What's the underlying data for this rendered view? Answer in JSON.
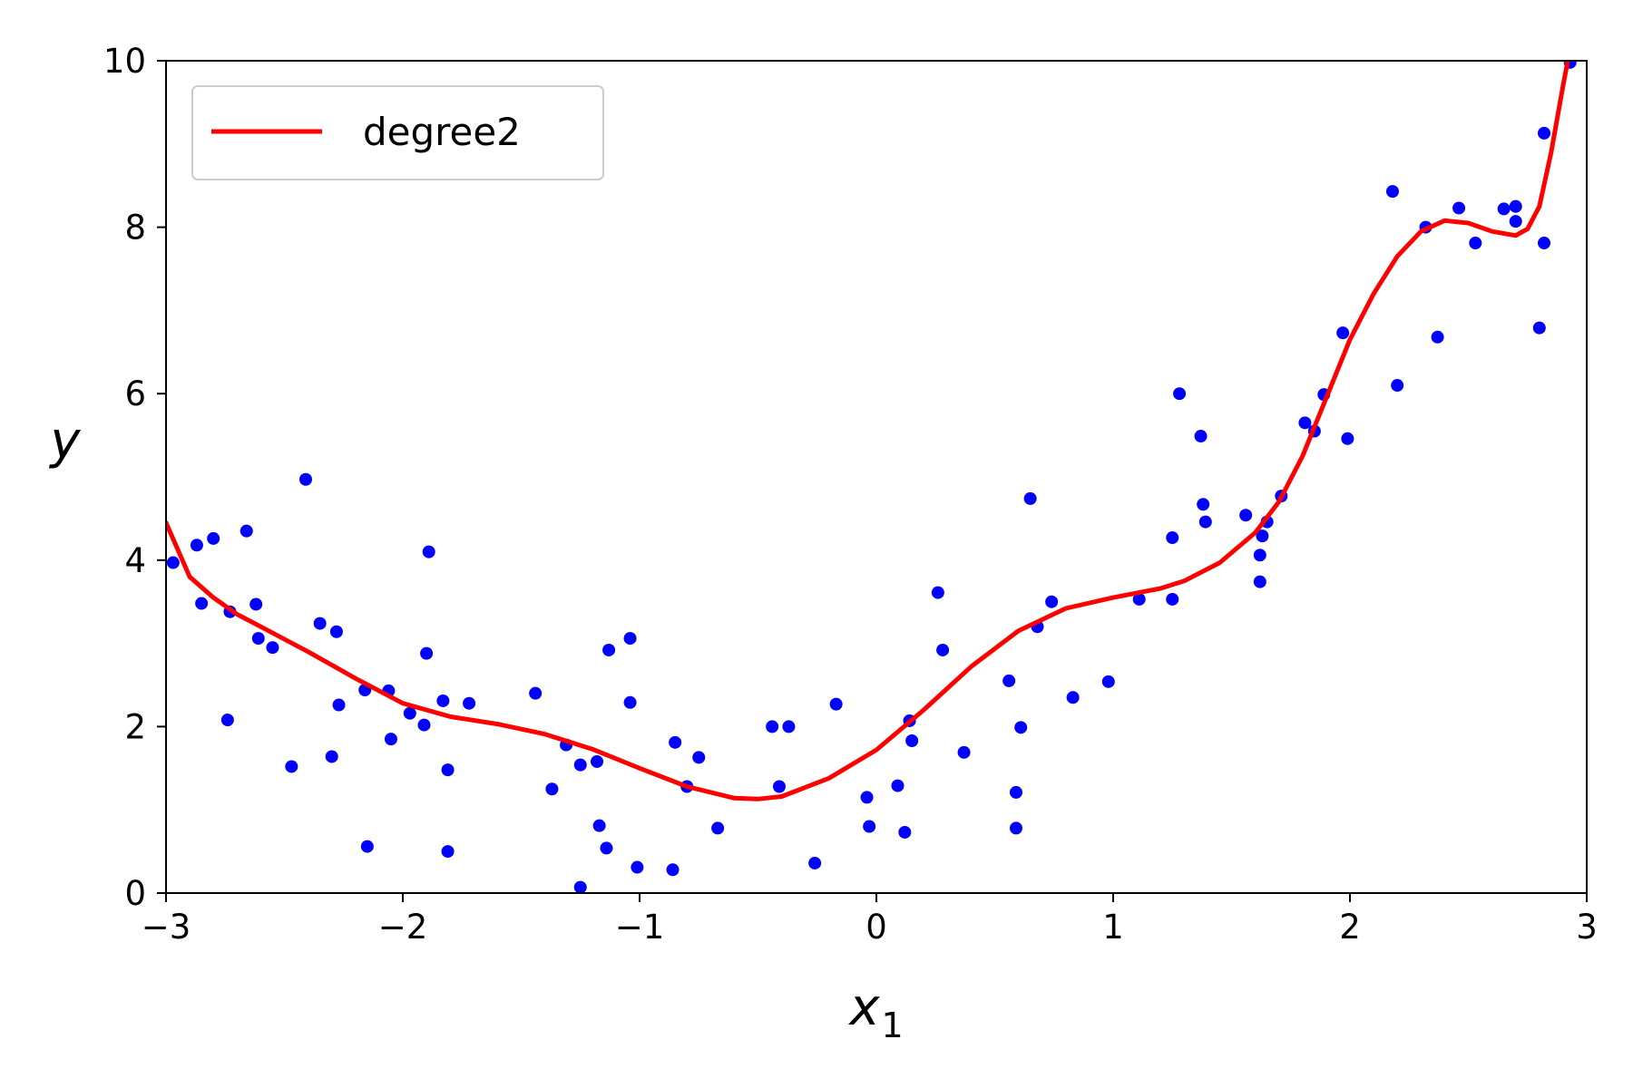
{
  "chart_data": {
    "type": "scatter",
    "title": "",
    "xlabel": "x",
    "xlabel_subscript": "1",
    "ylabel": "y",
    "xlim": [
      -3,
      3
    ],
    "ylim": [
      0,
      10
    ],
    "xticks": [
      -3,
      -2,
      -1,
      0,
      1,
      2,
      3
    ],
    "yticks": [
      0,
      2,
      4,
      6,
      8,
      10
    ],
    "xtick_labels": [
      "−3",
      "−2",
      "−1",
      "0",
      "1",
      "2",
      "3"
    ],
    "ytick_labels": [
      "0",
      "2",
      "4",
      "6",
      "8",
      "10"
    ],
    "grid": false,
    "legend_position": "top-left",
    "legend": [
      "degree2"
    ],
    "colors": {
      "points": "#0000ff",
      "curve": "#ff0000"
    },
    "series": [
      {
        "type": "scatter",
        "color": "#0000ff",
        "points": [
          [
            -2.97,
            3.97
          ],
          [
            -2.87,
            4.18
          ],
          [
            -2.85,
            3.48
          ],
          [
            -2.8,
            4.26
          ],
          [
            -2.74,
            2.08
          ],
          [
            -2.73,
            3.38
          ],
          [
            -2.66,
            4.35
          ],
          [
            -2.62,
            3.47
          ],
          [
            -2.61,
            3.06
          ],
          [
            -2.55,
            2.95
          ],
          [
            -2.47,
            1.52
          ],
          [
            -2.41,
            4.97
          ],
          [
            -2.35,
            3.24
          ],
          [
            -2.3,
            1.64
          ],
          [
            -2.28,
            3.14
          ],
          [
            -2.27,
            2.26
          ],
          [
            -2.16,
            2.44
          ],
          [
            -2.15,
            0.56
          ],
          [
            -2.06,
            2.43
          ],
          [
            -2.05,
            1.85
          ],
          [
            -1.97,
            2.16
          ],
          [
            -1.91,
            2.02
          ],
          [
            -1.9,
            2.88
          ],
          [
            -1.89,
            4.1
          ],
          [
            -1.83,
            2.31
          ],
          [
            -1.81,
            1.48
          ],
          [
            -1.81,
            0.5
          ],
          [
            -1.72,
            2.28
          ],
          [
            -1.44,
            2.4
          ],
          [
            -1.37,
            1.25
          ],
          [
            -1.31,
            1.78
          ],
          [
            -1.25,
            1.54
          ],
          [
            -1.25,
            0.07
          ],
          [
            -1.18,
            1.58
          ],
          [
            -1.17,
            0.81
          ],
          [
            -1.14,
            0.54
          ],
          [
            -1.13,
            2.92
          ],
          [
            -1.04,
            3.06
          ],
          [
            -1.04,
            2.29
          ],
          [
            -1.01,
            0.31
          ],
          [
            -0.86,
            0.28
          ],
          [
            -0.85,
            1.81
          ],
          [
            -0.8,
            1.28
          ],
          [
            -0.75,
            1.63
          ],
          [
            -0.67,
            0.78
          ],
          [
            -0.44,
            2.0
          ],
          [
            -0.41,
            1.28
          ],
          [
            -0.37,
            2.0
          ],
          [
            -0.26,
            0.36
          ],
          [
            -0.17,
            2.27
          ],
          [
            -0.04,
            1.15
          ],
          [
            -0.03,
            0.8
          ],
          [
            0.09,
            1.29
          ],
          [
            0.12,
            0.73
          ],
          [
            0.14,
            2.07
          ],
          [
            0.15,
            1.83
          ],
          [
            0.26,
            3.61
          ],
          [
            0.28,
            2.92
          ],
          [
            0.37,
            1.69
          ],
          [
            0.56,
            2.55
          ],
          [
            0.59,
            1.21
          ],
          [
            0.59,
            0.78
          ],
          [
            0.61,
            1.99
          ],
          [
            0.65,
            4.74
          ],
          [
            0.68,
            3.2
          ],
          [
            0.74,
            3.5
          ],
          [
            0.83,
            2.35
          ],
          [
            0.98,
            2.54
          ],
          [
            1.11,
            3.53
          ],
          [
            1.25,
            4.27
          ],
          [
            1.25,
            3.53
          ],
          [
            1.28,
            6.0
          ],
          [
            1.37,
            5.49
          ],
          [
            1.38,
            4.67
          ],
          [
            1.39,
            4.46
          ],
          [
            1.56,
            4.54
          ],
          [
            1.62,
            4.06
          ],
          [
            1.62,
            3.74
          ],
          [
            1.63,
            4.29
          ],
          [
            1.65,
            4.46
          ],
          [
            1.71,
            4.77
          ],
          [
            1.81,
            5.65
          ],
          [
            1.85,
            5.55
          ],
          [
            1.89,
            5.99
          ],
          [
            1.97,
            6.73
          ],
          [
            1.99,
            5.46
          ],
          [
            2.18,
            8.43
          ],
          [
            2.2,
            6.1
          ],
          [
            2.32,
            8.0
          ],
          [
            2.37,
            6.68
          ],
          [
            2.46,
            8.23
          ],
          [
            2.53,
            7.81
          ],
          [
            2.65,
            8.22
          ],
          [
            2.7,
            8.25
          ],
          [
            2.7,
            8.07
          ],
          [
            2.8,
            6.79
          ],
          [
            2.82,
            9.13
          ],
          [
            2.82,
            7.81
          ],
          [
            2.93,
            9.98
          ]
        ]
      },
      {
        "type": "line",
        "name": "degree2",
        "color": "#ff0000",
        "points": [
          [
            -3.0,
            4.45
          ],
          [
            -2.9,
            3.8
          ],
          [
            -2.8,
            3.55
          ],
          [
            -2.7,
            3.35
          ],
          [
            -2.6,
            3.2
          ],
          [
            -2.4,
            2.9
          ],
          [
            -2.2,
            2.58
          ],
          [
            -2.0,
            2.28
          ],
          [
            -1.8,
            2.12
          ],
          [
            -1.6,
            2.03
          ],
          [
            -1.4,
            1.91
          ],
          [
            -1.2,
            1.73
          ],
          [
            -1.0,
            1.5
          ],
          [
            -0.8,
            1.28
          ],
          [
            -0.6,
            1.14
          ],
          [
            -0.5,
            1.13
          ],
          [
            -0.4,
            1.16
          ],
          [
            -0.2,
            1.38
          ],
          [
            0.0,
            1.72
          ],
          [
            0.2,
            2.2
          ],
          [
            0.4,
            2.72
          ],
          [
            0.6,
            3.15
          ],
          [
            0.8,
            3.42
          ],
          [
            1.0,
            3.55
          ],
          [
            1.2,
            3.66
          ],
          [
            1.3,
            3.75
          ],
          [
            1.45,
            3.97
          ],
          [
            1.6,
            4.33
          ],
          [
            1.7,
            4.7
          ],
          [
            1.8,
            5.25
          ],
          [
            1.9,
            5.95
          ],
          [
            2.0,
            6.65
          ],
          [
            2.1,
            7.2
          ],
          [
            2.2,
            7.65
          ],
          [
            2.3,
            7.95
          ],
          [
            2.4,
            8.08
          ],
          [
            2.5,
            8.05
          ],
          [
            2.6,
            7.95
          ],
          [
            2.7,
            7.9
          ],
          [
            2.75,
            7.98
          ],
          [
            2.8,
            8.25
          ],
          [
            2.85,
            8.9
          ],
          [
            2.9,
            9.7
          ],
          [
            2.92,
            10.0
          ]
        ]
      }
    ]
  }
}
